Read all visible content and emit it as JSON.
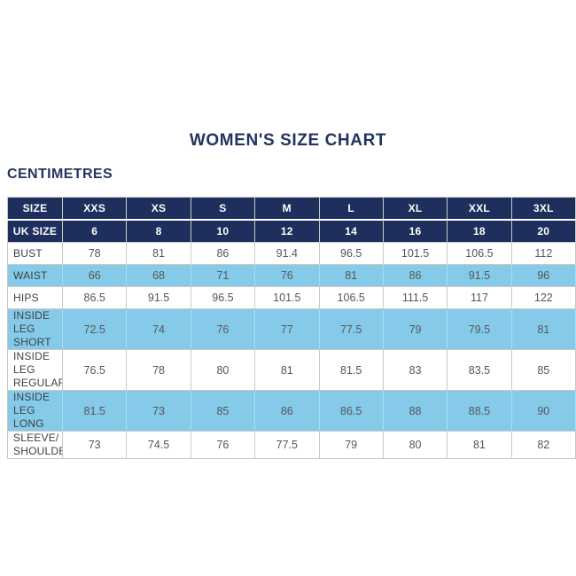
{
  "colors": {
    "navy": "#1e2f5d",
    "navy_text": "#23345f",
    "light_blue": "#85cbe9",
    "blue_separator": "#aedcf0",
    "border_gray": "#c9c9c9",
    "value_gray": "#55565b",
    "label_gray": "#3d3f44"
  },
  "chart_data": {
    "type": "table",
    "title": "WOMEN'S SIZE CHART",
    "unit": "CENTIMETRES",
    "header_rows": [
      {
        "label": "SIZE",
        "values": [
          "XXS",
          "XS",
          "S",
          "M",
          "L",
          "XL",
          "XXL",
          "3XL"
        ]
      },
      {
        "label": "UK SIZE",
        "values": [
          "6",
          "8",
          "10",
          "12",
          "14",
          "16",
          "18",
          "20"
        ]
      }
    ],
    "rows": [
      {
        "label": "BUST",
        "values": [
          "78",
          "81",
          "86",
          "91.4",
          "96.5",
          "101.5",
          "106.5",
          "112"
        ]
      },
      {
        "label": "WAIST",
        "values": [
          "66",
          "68",
          "71",
          "76",
          "81",
          "86",
          "91.5",
          "96"
        ]
      },
      {
        "label": "HIPS",
        "values": [
          "86.5",
          "91.5",
          "96.5",
          "101.5",
          "106.5",
          "111.5",
          "117",
          "122"
        ]
      },
      {
        "label": "INSIDE LEG\nSHORT",
        "values": [
          "72.5",
          "74",
          "76",
          "77",
          "77.5",
          "79",
          "79.5",
          "81"
        ]
      },
      {
        "label": "INSIDE LEG\nREGULAR",
        "values": [
          "76.5",
          "78",
          "80",
          "81",
          "81.5",
          "83",
          "83.5",
          "85"
        ]
      },
      {
        "label": "INSIDE LEG\nLONG",
        "values": [
          "81.5",
          "73",
          "85",
          "86",
          "86.5",
          "88",
          "88.5",
          "90"
        ]
      },
      {
        "label": "SLEEVE/\nSHOULDER",
        "values": [
          "73",
          "74.5",
          "76",
          "77.5",
          "79",
          "80",
          "81",
          "82"
        ]
      }
    ]
  }
}
